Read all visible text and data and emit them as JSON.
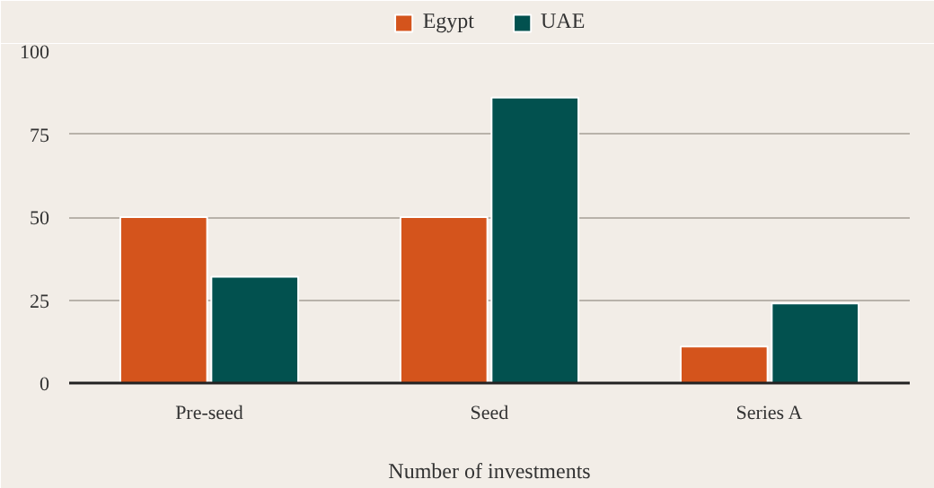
{
  "chart_data": {
    "type": "bar",
    "xlabel": "Number of investments",
    "categories": [
      "Pre-seed",
      "Seed",
      "Series A"
    ],
    "series": [
      {
        "name": "Egypt",
        "color": "#d4541c",
        "values": [
          50,
          50,
          11
        ]
      },
      {
        "name": "UAE",
        "color": "#02514f",
        "values": [
          32,
          86,
          24
        ]
      }
    ],
    "ylim": [
      0,
      100
    ],
    "yticks": [
      0,
      25,
      50,
      75,
      100
    ],
    "grid": "y",
    "legend": "top"
  }
}
